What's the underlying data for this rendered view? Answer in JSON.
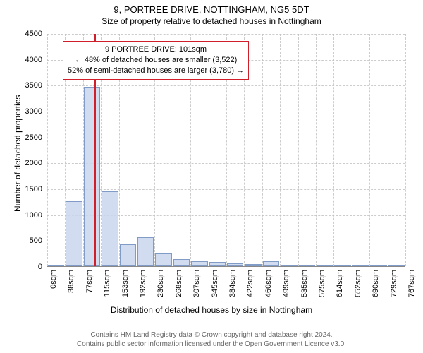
{
  "titles": {
    "line1": "9, PORTREE DRIVE, NOTTINGHAM, NG5 5DT",
    "line2": "Size of property relative to detached houses in Nottingham"
  },
  "chart": {
    "type": "histogram",
    "background_color": "#ffffff",
    "grid_color": "#c0c0c0",
    "axis_color": "#888888",
    "ylim": [
      0,
      4500
    ],
    "ytick_step": 500,
    "yticks": [
      0,
      500,
      1000,
      1500,
      2000,
      2500,
      3000,
      3500,
      4000,
      4500
    ],
    "xticks": [
      "0sqm",
      "38sqm",
      "77sqm",
      "115sqm",
      "153sqm",
      "192sqm",
      "230sqm",
      "268sqm",
      "307sqm",
      "345sqm",
      "384sqm",
      "422sqm",
      "460sqm",
      "499sqm",
      "535sqm",
      "575sqm",
      "614sqm",
      "652sqm",
      "690sqm",
      "729sqm",
      "767sqm"
    ],
    "bar_fill": "#c9d6ee",
    "bar_border": "#6a8bbd",
    "bar_opacity": 0.85,
    "bars": [
      {
        "idx": 0,
        "value": 5
      },
      {
        "idx": 1,
        "value": 1250
      },
      {
        "idx": 2,
        "value": 3470
      },
      {
        "idx": 3,
        "value": 1450
      },
      {
        "idx": 4,
        "value": 420
      },
      {
        "idx": 5,
        "value": 560
      },
      {
        "idx": 6,
        "value": 250
      },
      {
        "idx": 7,
        "value": 140
      },
      {
        "idx": 8,
        "value": 95
      },
      {
        "idx": 9,
        "value": 80
      },
      {
        "idx": 10,
        "value": 60
      },
      {
        "idx": 11,
        "value": 40
      },
      {
        "idx": 12,
        "value": 100
      },
      {
        "idx": 13,
        "value": 15
      },
      {
        "idx": 14,
        "value": 10
      },
      {
        "idx": 15,
        "value": 5
      },
      {
        "idx": 16,
        "value": 5
      },
      {
        "idx": 17,
        "value": 5
      },
      {
        "idx": 18,
        "value": 5
      },
      {
        "idx": 19,
        "value": 5
      }
    ],
    "marker": {
      "x_value": 101,
      "x_max": 767,
      "color": "#d11e2b"
    },
    "annotation": {
      "line1": "9 PORTREE DRIVE: 101sqm",
      "line2": "← 48% of detached houses are smaller (3,522)",
      "line3": "52% of semi-detached houses are larger (3,780) →",
      "border_color": "#d11e2b",
      "background": "#ffffff",
      "fontsize": 11
    },
    "ylabel": "Number of detached properties",
    "xlabel": "Distribution of detached houses by size in Nottingham",
    "label_fontsize": 12,
    "title_fontsize": 13
  },
  "footer": {
    "line1": "Contains HM Land Registry data © Crown copyright and database right 2024.",
    "line2": "Contains public sector information licensed under the Open Government Licence v3.0."
  }
}
